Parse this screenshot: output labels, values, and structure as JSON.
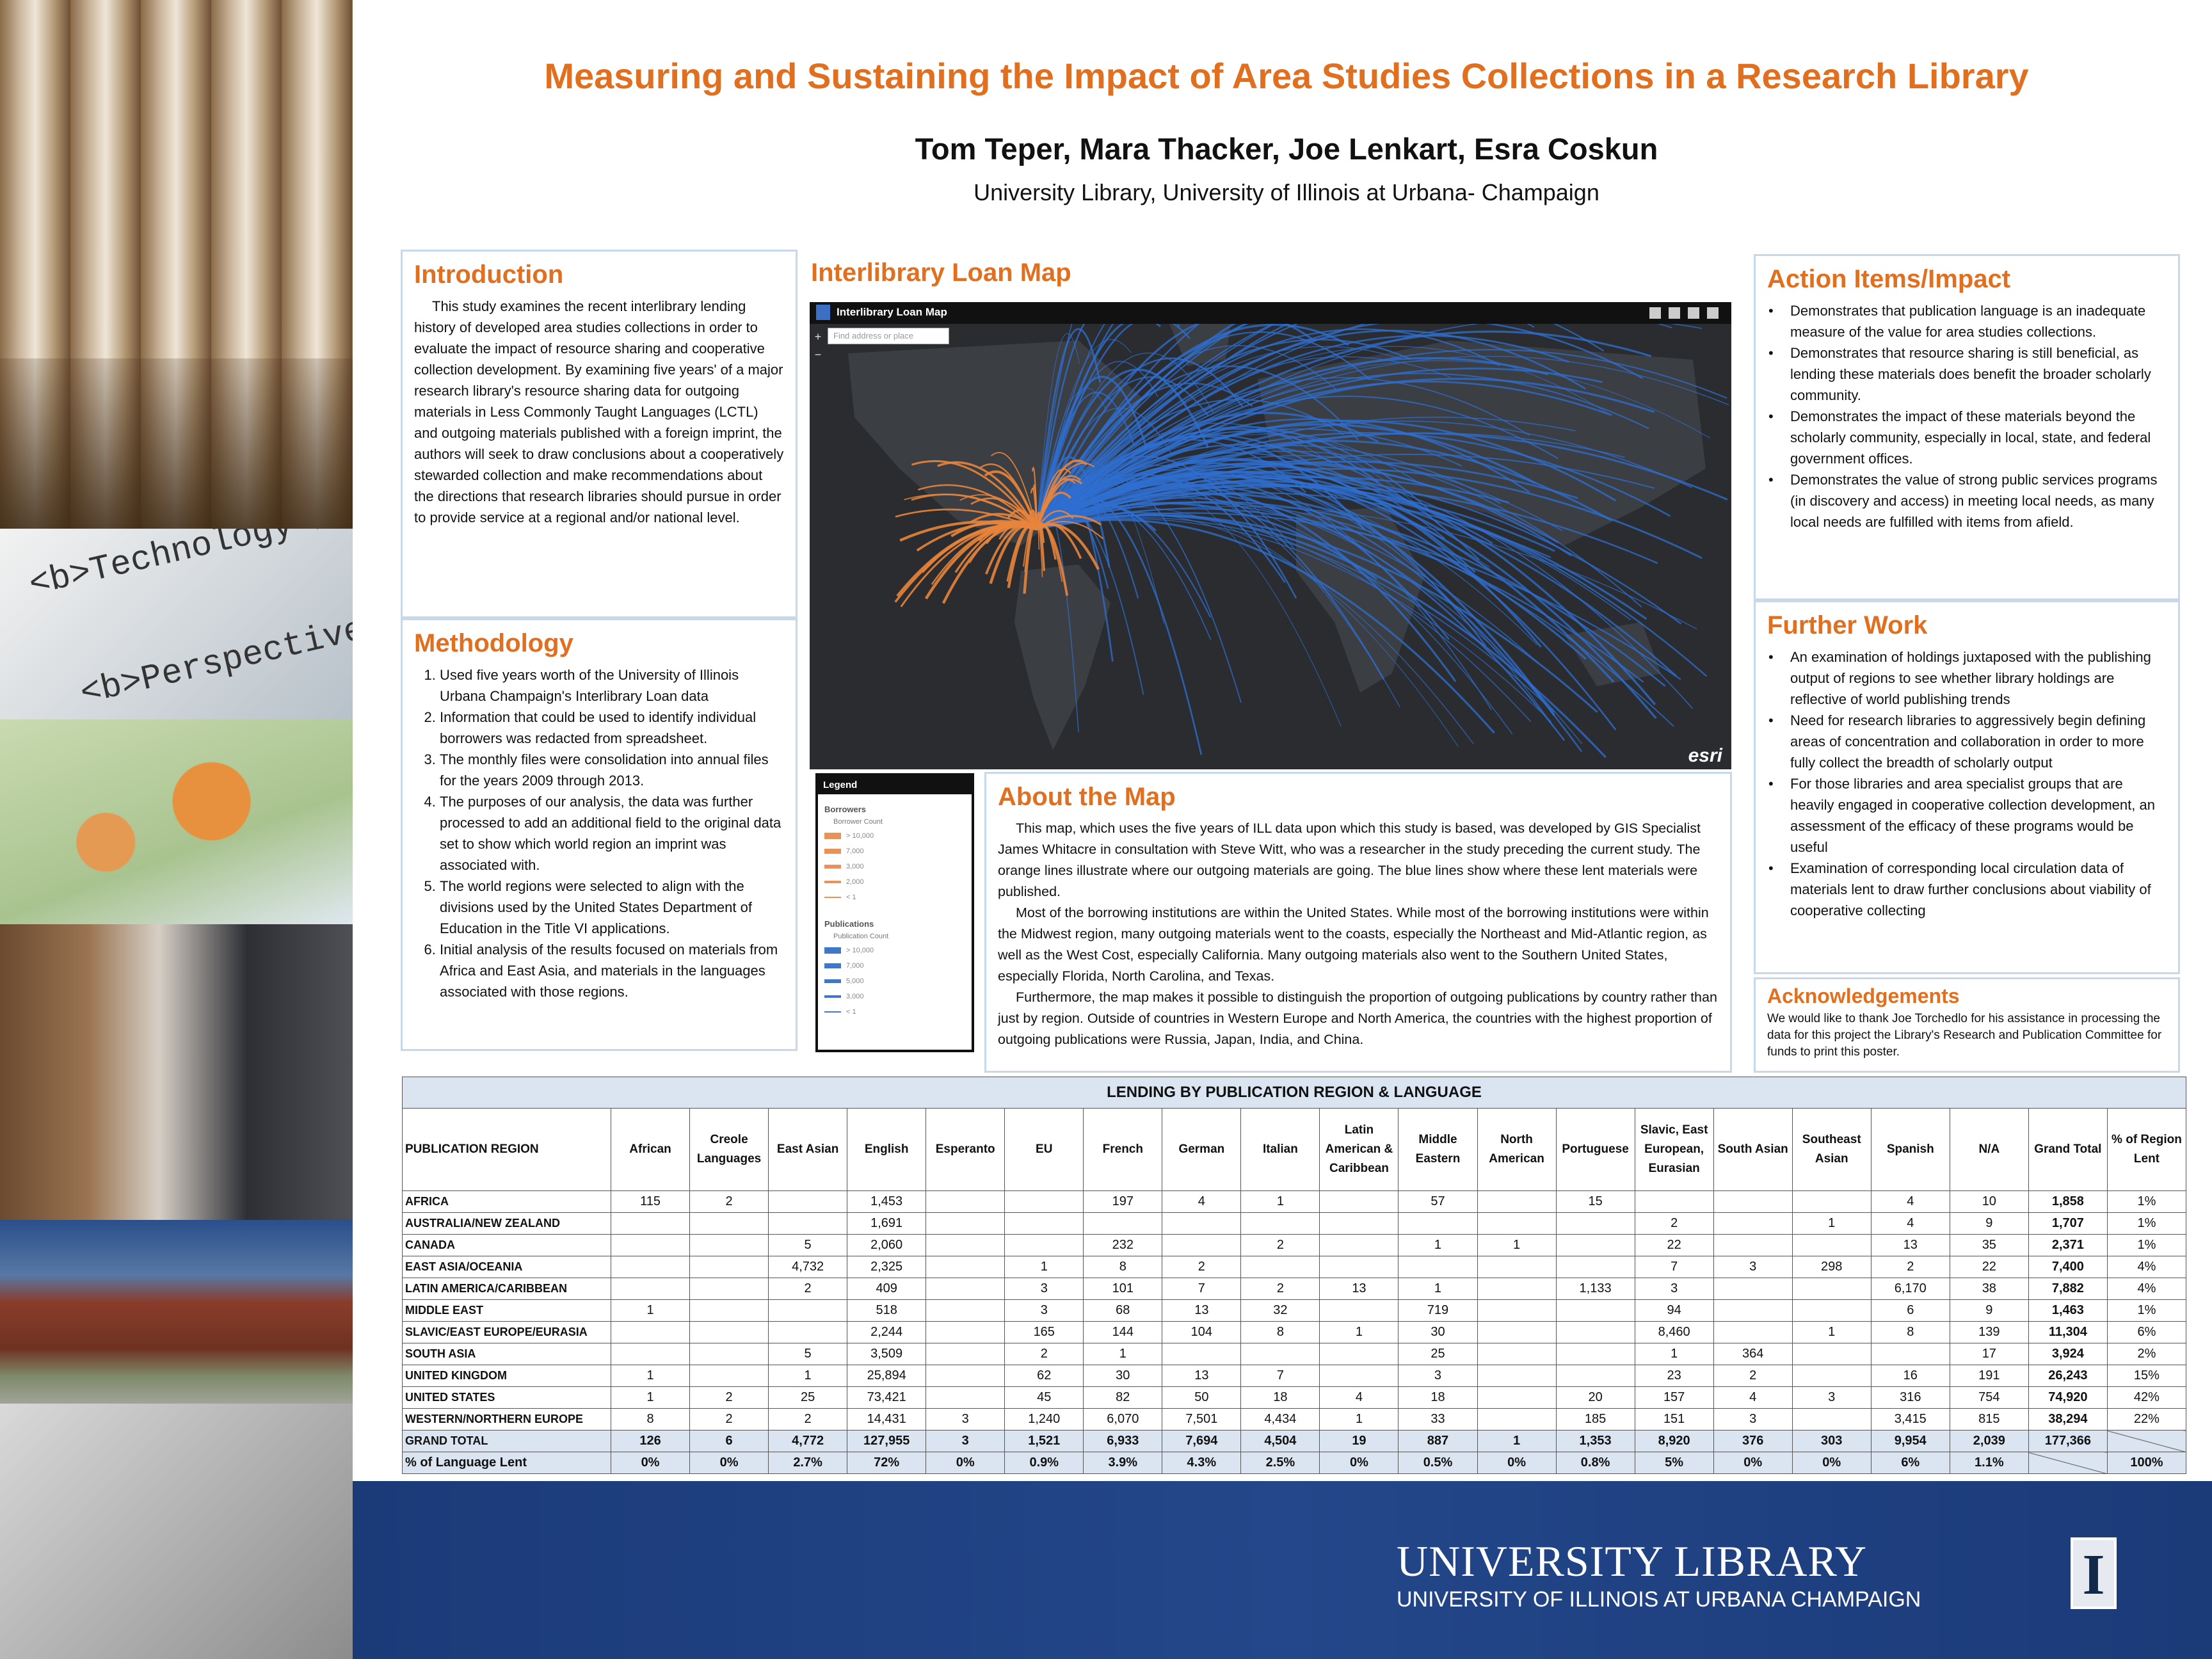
{
  "header": {
    "title": "Measuring and Sustaining the Impact of Area Studies Collections in a Research Library",
    "authors": "Tom Teper, Mara Thacker, Joe Lenkart, Esra Coskun",
    "affiliation": "University Library, University of Illinois at Urbana- Champaign"
  },
  "sidebar": {
    "image_texts": [
      "<b>Technology</b",
      "<b>Perspective"
    ]
  },
  "introduction": {
    "heading": "Introduction",
    "text": "This study examines the recent interlibrary lending history of developed area studies collections in order to evaluate the impact of resource sharing and cooperative collection development. By examining five years' of a major research library's resource sharing data for outgoing materials in Less Commonly Taught Languages (LCTL) and outgoing materials published with a foreign imprint, the authors will seek to draw conclusions about a cooperatively stewarded collection and make recommendations about the directions that research libraries should pursue in order to provide service at a regional and/or national level."
  },
  "methodology": {
    "heading": "Methodology",
    "items": [
      "Used five years worth of the University of Illinois Urbana Champaign's Interlibrary Loan data",
      "Information that could be used to identify individual borrowers was redacted from spreadsheet.",
      "The monthly files were consolidation into annual files for the years 2009 through 2013.",
      "The purposes of our analysis, the data was further processed to add an additional field to the original data set to show which world region an imprint was associated with.",
      "The world regions were selected to align with the divisions used by the United States Department of Education in the Title VI applications.",
      "Initial analysis of the results focused on materials from Africa and East Asia, and materials in the languages associated with those regions."
    ]
  },
  "map": {
    "heading": "Interlibrary Loan Map",
    "app_title": "Interlibrary Loan Map",
    "search_placeholder": "Find address or place",
    "attribution": "esri",
    "legend": {
      "title": "Legend",
      "groups": [
        {
          "title": "Borrowers",
          "subtitle": "Borrower Count",
          "items": [
            "> 10,000",
            "7,000",
            "3,000",
            "2,000",
            "< 1"
          ]
        },
        {
          "title": "Publications",
          "subtitle": "Publication Count",
          "items": [
            "> 10,000",
            "7,000",
            "5,000",
            "3,000",
            "< 1"
          ]
        }
      ]
    }
  },
  "about_map": {
    "heading": "About the Map",
    "paragraphs": [
      "This map, which uses the five years of ILL data upon which this study is based, was developed by GIS Specialist James Whitacre in consultation with Steve Witt, who was a researcher in the study preceding the current study. The orange lines illustrate where our outgoing materials are going. The blue lines show where these lent materials were published.",
      "Most of the borrowing institutions are within the United States. While most of the borrowing institutions were within the Midwest region, many outgoing materials went to the coasts, especially the Northeast and Mid-Atlantic region, as well as the West Cost, especially California. Many outgoing materials also went to the Southern United States, especially Florida, North Carolina, and Texas.",
      "Furthermore, the map makes it possible to distinguish the proportion of outgoing publications by country rather than just by region. Outside of countries in Western Europe and North America, the countries with the highest proportion of outgoing publications were Russia, Japan, India, and China."
    ]
  },
  "action_items": {
    "heading": "Action Items/Impact",
    "items": [
      "Demonstrates that publication language is an inadequate measure of the value for area studies collections.",
      "Demonstrates that resource sharing is still beneficial, as lending these materials does benefit the broader scholarly community.",
      "Demonstrates the impact of these materials beyond the scholarly community, especially in local, state, and federal government offices.",
      "Demonstrates the value of strong public services programs (in discovery and access) in meeting local needs, as many local needs are fulfilled with items from afield."
    ]
  },
  "further_work": {
    "heading": "Further Work",
    "items": [
      "An examination of holdings juxtaposed with the publishing output of regions to see whether library holdings are reflective of world publishing trends",
      "Need for research libraries to aggressively begin defining areas of concentration and collaboration in order to more fully collect the breadth of scholarly output",
      "For those libraries and area specialist groups that are heavily engaged in cooperative collection development, an assessment of the efficacy of these programs would be useful",
      "Examination of corresponding local circulation data of materials lent to draw further conclusions about viability of cooperative collecting"
    ]
  },
  "acknowledgements": {
    "heading": "Acknowledgements",
    "text": "We would like to thank Joe Torchedlo for his assistance in processing the data for this project the Library's Research and Publication Committee for funds to print this poster."
  },
  "table": {
    "title": "LENDING BY PUBLICATION REGION & LANGUAGE",
    "headers": [
      "PUBLICATION REGION",
      "African",
      "Creole Languages",
      "East Asian",
      "English",
      "Esperanto",
      "EU",
      "French",
      "German",
      "Italian",
      "Latin American & Caribbean",
      "Middle Eastern",
      "North American",
      "Portuguese",
      "Slavic, East European, Eurasian",
      "South Asian",
      "Southeast Asian",
      "Spanish",
      "N/A",
      "Grand Total",
      "% of Region Lent"
    ],
    "rows": [
      [
        "AFRICA",
        "115",
        "2",
        null,
        "1,453",
        null,
        null,
        "197",
        "4",
        "1",
        null,
        "57",
        null,
        "15",
        null,
        null,
        null,
        "4",
        "10",
        "1,858",
        "1%"
      ],
      [
        "AUSTRALIA/NEW ZEALAND",
        null,
        null,
        null,
        "1,691",
        null,
        null,
        null,
        null,
        null,
        null,
        null,
        null,
        null,
        "2",
        null,
        "1",
        "4",
        "9",
        "1,707",
        "1%"
      ],
      [
        "CANADA",
        null,
        null,
        "5",
        "2,060",
        null,
        null,
        "232",
        null,
        "2",
        null,
        "1",
        "1",
        null,
        "22",
        null,
        null,
        "13",
        "35",
        "2,371",
        "1%"
      ],
      [
        "EAST ASIA/OCEANIA",
        null,
        null,
        "4,732",
        "2,325",
        null,
        "1",
        "8",
        "2",
        null,
        null,
        null,
        null,
        null,
        "7",
        "3",
        "298",
        "2",
        "22",
        "7,400",
        "4%"
      ],
      [
        "LATIN AMERICA/CARIBBEAN",
        null,
        null,
        "2",
        "409",
        null,
        "3",
        "101",
        "7",
        "2",
        "13",
        "1",
        null,
        "1,133",
        "3",
        null,
        null,
        "6,170",
        "38",
        "7,882",
        "4%"
      ],
      [
        "MIDDLE EAST",
        "1",
        null,
        null,
        "518",
        null,
        "3",
        "68",
        "13",
        "32",
        null,
        "719",
        null,
        null,
        "94",
        null,
        null,
        "6",
        "9",
        "1,463",
        "1%"
      ],
      [
        "SLAVIC/EAST EUROPE/EURASIA",
        null,
        null,
        null,
        "2,244",
        null,
        "165",
        "144",
        "104",
        "8",
        "1",
        "30",
        null,
        null,
        "8,460",
        null,
        "1",
        "8",
        "139",
        "11,304",
        "6%"
      ],
      [
        "SOUTH ASIA",
        null,
        null,
        "5",
        "3,509",
        null,
        "2",
        "1",
        null,
        null,
        null,
        "25",
        null,
        null,
        "1",
        "364",
        null,
        null,
        "17",
        "3,924",
        "2%"
      ],
      [
        "UNITED KINGDOM",
        "1",
        null,
        "1",
        "25,894",
        null,
        "62",
        "30",
        "13",
        "7",
        null,
        "3",
        null,
        null,
        "23",
        "2",
        null,
        "16",
        "191",
        "26,243",
        "15%"
      ],
      [
        "UNITED STATES",
        "1",
        "2",
        "25",
        "73,421",
        null,
        "45",
        "82",
        "50",
        "18",
        "4",
        "18",
        null,
        "20",
        "157",
        "4",
        "3",
        "316",
        "754",
        "74,920",
        "42%"
      ],
      [
        "WESTERN/NORTHERN EUROPE",
        "8",
        "2",
        "2",
        "14,431",
        "3",
        "1,240",
        "6,070",
        "7,501",
        "4,434",
        "1",
        "33",
        null,
        "185",
        "151",
        "3",
        null,
        "3,415",
        "815",
        "38,294",
        "22%"
      ],
      [
        "GRAND TOTAL",
        "126",
        "6",
        "4,772",
        "127,955",
        "3",
        "1,521",
        "6,933",
        "7,694",
        "4,504",
        "19",
        "887",
        "1",
        "1,353",
        "8,920",
        "376",
        "303",
        "9,954",
        "2,039",
        "177,366",
        null
      ],
      [
        "% of Language Lent",
        "0%",
        "0%",
        "2.7%",
        "72%",
        "0%",
        "0.9%",
        "3.9%",
        "4.3%",
        "2.5%",
        "0%",
        "0.5%",
        "0%",
        "0.8%",
        "5%",
        "0%",
        "0%",
        "6%",
        "1.1%",
        null,
        "100%"
      ]
    ]
  },
  "footer": {
    "line1": "UNIVERSITY LIBRARY",
    "line2": "UNIVERSITY OF ILLINOIS AT URBANA CHAMPAIGN",
    "logo": "I"
  }
}
